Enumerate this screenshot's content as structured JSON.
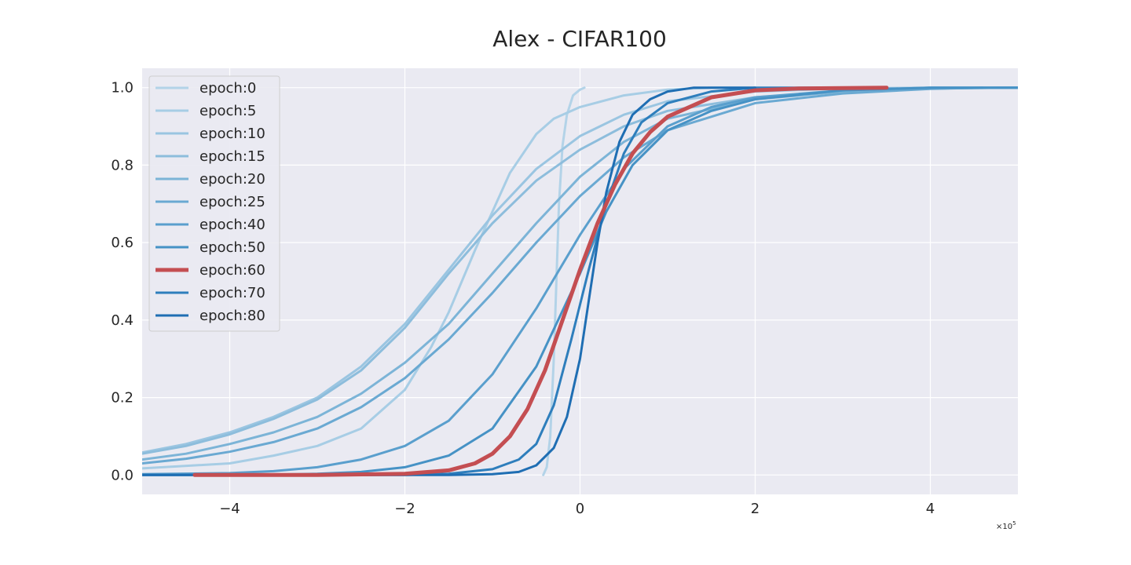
{
  "chart_data": {
    "type": "line",
    "title": "Alex - CIFAR100",
    "xlabel": "",
    "ylabel": "",
    "x_offset_label": "×10",
    "x_offset_exponent": "5",
    "xlim": [
      -5,
      5
    ],
    "ylim": [
      -0.05,
      1.05
    ],
    "xticks": [
      -4,
      -2,
      0,
      2,
      4
    ],
    "xtick_labels": [
      "−4",
      "−2",
      "0",
      "2",
      "4"
    ],
    "yticks": [
      0.0,
      0.2,
      0.4,
      0.6,
      0.8,
      1.0
    ],
    "ytick_labels": [
      "0.0",
      "0.2",
      "0.4",
      "0.6",
      "0.8",
      "1.0"
    ],
    "grid": true,
    "legend_position": "top-left",
    "highlight_color": "#c44e52",
    "series": [
      {
        "name": "epoch:0",
        "color": "#b3d3e8",
        "width": 3,
        "points": [
          [
            -0.42,
            0.0
          ],
          [
            -0.38,
            0.02
          ],
          [
            -0.34,
            0.1
          ],
          [
            -0.3,
            0.3
          ],
          [
            -0.27,
            0.5
          ],
          [
            -0.24,
            0.7
          ],
          [
            -0.2,
            0.85
          ],
          [
            -0.15,
            0.93
          ],
          [
            -0.08,
            0.98
          ],
          [
            0.0,
            0.995
          ],
          [
            0.05,
            1.0
          ]
        ]
      },
      {
        "name": "epoch:5",
        "color": "#a7cde5",
        "width": 3,
        "points": [
          [
            -5,
            0.017
          ],
          [
            -4,
            0.03
          ],
          [
            -3.5,
            0.05
          ],
          [
            -3,
            0.075
          ],
          [
            -2.5,
            0.12
          ],
          [
            -2,
            0.22
          ],
          [
            -1.7,
            0.33
          ],
          [
            -1.5,
            0.42
          ],
          [
            -1.2,
            0.58
          ],
          [
            -1,
            0.68
          ],
          [
            -0.8,
            0.78
          ],
          [
            -0.5,
            0.88
          ],
          [
            -0.3,
            0.92
          ],
          [
            0,
            0.95
          ],
          [
            0.5,
            0.98
          ],
          [
            1,
            0.995
          ],
          [
            1.5,
            1.0
          ],
          [
            2,
            1.0
          ]
        ]
      },
      {
        "name": "epoch:10",
        "color": "#9ac5e1",
        "width": 3,
        "points": [
          [
            -5,
            0.058
          ],
          [
            -4.5,
            0.08
          ],
          [
            -4,
            0.11
          ],
          [
            -3.5,
            0.15
          ],
          [
            -3,
            0.2
          ],
          [
            -2.5,
            0.28
          ],
          [
            -2,
            0.39
          ],
          [
            -1.5,
            0.53
          ],
          [
            -1,
            0.67
          ],
          [
            -0.5,
            0.79
          ],
          [
            0,
            0.875
          ],
          [
            0.5,
            0.93
          ],
          [
            1,
            0.965
          ],
          [
            2,
            0.99
          ],
          [
            3,
            0.998
          ],
          [
            4,
            1.0
          ],
          [
            5,
            1.0
          ]
        ]
      },
      {
        "name": "epoch:15",
        "color": "#8dbddc",
        "width": 3,
        "points": [
          [
            -5,
            0.055
          ],
          [
            -4.5,
            0.075
          ],
          [
            -4,
            0.105
          ],
          [
            -3.5,
            0.145
          ],
          [
            -3,
            0.195
          ],
          [
            -2.5,
            0.27
          ],
          [
            -2,
            0.38
          ],
          [
            -1.5,
            0.52
          ],
          [
            -1,
            0.65
          ],
          [
            -0.5,
            0.76
          ],
          [
            0,
            0.84
          ],
          [
            0.5,
            0.9
          ],
          [
            1,
            0.94
          ],
          [
            2,
            0.975
          ],
          [
            3,
            0.99
          ],
          [
            4,
            0.998
          ],
          [
            5,
            1.0
          ]
        ]
      },
      {
        "name": "epoch:20",
        "color": "#7cb4d7",
        "width": 3,
        "points": [
          [
            -5,
            0.04
          ],
          [
            -4.5,
            0.055
          ],
          [
            -4,
            0.08
          ],
          [
            -3.5,
            0.11
          ],
          [
            -3,
            0.15
          ],
          [
            -2.5,
            0.21
          ],
          [
            -2,
            0.29
          ],
          [
            -1.5,
            0.39
          ],
          [
            -1,
            0.52
          ],
          [
            -0.5,
            0.65
          ],
          [
            0,
            0.77
          ],
          [
            0.5,
            0.86
          ],
          [
            1,
            0.92
          ],
          [
            2,
            0.97
          ],
          [
            3,
            0.99
          ],
          [
            4,
            0.998
          ],
          [
            5,
            1.0
          ]
        ]
      },
      {
        "name": "epoch:25",
        "color": "#6aa9d2",
        "width": 3,
        "points": [
          [
            -5,
            0.03
          ],
          [
            -4.5,
            0.042
          ],
          [
            -4,
            0.06
          ],
          [
            -3.5,
            0.085
          ],
          [
            -3,
            0.12
          ],
          [
            -2.5,
            0.175
          ],
          [
            -2,
            0.25
          ],
          [
            -1.5,
            0.35
          ],
          [
            -1,
            0.47
          ],
          [
            -0.5,
            0.6
          ],
          [
            0,
            0.72
          ],
          [
            0.5,
            0.82
          ],
          [
            1,
            0.89
          ],
          [
            2,
            0.96
          ],
          [
            3,
            0.985
          ],
          [
            4,
            0.997
          ],
          [
            4.6,
            1.0
          ]
        ]
      },
      {
        "name": "epoch:40",
        "color": "#5a9fcd",
        "width": 3,
        "points": [
          [
            -5,
            0.002
          ],
          [
            -4,
            0.005
          ],
          [
            -3.5,
            0.01
          ],
          [
            -3,
            0.02
          ],
          [
            -2.5,
            0.04
          ],
          [
            -2,
            0.075
          ],
          [
            -1.5,
            0.14
          ],
          [
            -1,
            0.26
          ],
          [
            -0.5,
            0.43
          ],
          [
            0,
            0.62
          ],
          [
            0.5,
            0.79
          ],
          [
            1,
            0.9
          ],
          [
            1.5,
            0.95
          ],
          [
            2,
            0.975
          ],
          [
            3,
            0.993
          ],
          [
            4,
            1.0
          ],
          [
            5,
            1.0
          ]
        ]
      },
      {
        "name": "epoch:50",
        "color": "#4692c5",
        "width": 3,
        "points": [
          [
            -5,
            0.0
          ],
          [
            -3.5,
            0.001
          ],
          [
            -3,
            0.003
          ],
          [
            -2.5,
            0.008
          ],
          [
            -2,
            0.02
          ],
          [
            -1.5,
            0.05
          ],
          [
            -1,
            0.12
          ],
          [
            -0.5,
            0.28
          ],
          [
            0,
            0.52
          ],
          [
            0.3,
            0.68
          ],
          [
            0.6,
            0.8
          ],
          [
            1,
            0.89
          ],
          [
            1.5,
            0.94
          ],
          [
            2,
            0.97
          ],
          [
            3,
            0.993
          ],
          [
            4,
            1.0
          ],
          [
            5,
            1.0
          ]
        ]
      },
      {
        "name": "epoch:60",
        "color": "#c44e52",
        "width": 5,
        "highlight": true,
        "points": [
          [
            -4.4,
            0.0
          ],
          [
            -3,
            0.0
          ],
          [
            -2,
            0.003
          ],
          [
            -1.5,
            0.012
          ],
          [
            -1.2,
            0.03
          ],
          [
            -1,
            0.055
          ],
          [
            -0.8,
            0.1
          ],
          [
            -0.6,
            0.17
          ],
          [
            -0.4,
            0.27
          ],
          [
            -0.2,
            0.4
          ],
          [
            0,
            0.53
          ],
          [
            0.2,
            0.65
          ],
          [
            0.4,
            0.75
          ],
          [
            0.6,
            0.83
          ],
          [
            0.8,
            0.885
          ],
          [
            1,
            0.925
          ],
          [
            1.5,
            0.975
          ],
          [
            2,
            0.993
          ],
          [
            2.5,
            0.998
          ],
          [
            3.5,
            1.0
          ]
        ]
      },
      {
        "name": "epoch:70",
        "color": "#2e7ebc",
        "width": 3,
        "points": [
          [
            -5,
            0.0
          ],
          [
            -2,
            0.0
          ],
          [
            -1.5,
            0.003
          ],
          [
            -1,
            0.015
          ],
          [
            -0.7,
            0.04
          ],
          [
            -0.5,
            0.08
          ],
          [
            -0.3,
            0.18
          ],
          [
            -0.1,
            0.35
          ],
          [
            0.1,
            0.53
          ],
          [
            0.3,
            0.7
          ],
          [
            0.5,
            0.83
          ],
          [
            0.7,
            0.91
          ],
          [
            1,
            0.96
          ],
          [
            1.5,
            0.99
          ],
          [
            2,
            1.0
          ],
          [
            3,
            1.0
          ]
        ]
      },
      {
        "name": "epoch:80",
        "color": "#1f6eb3",
        "width": 3,
        "points": [
          [
            -5,
            0.0
          ],
          [
            -1.5,
            0.0
          ],
          [
            -1,
            0.002
          ],
          [
            -0.7,
            0.008
          ],
          [
            -0.5,
            0.025
          ],
          [
            -0.3,
            0.07
          ],
          [
            -0.15,
            0.15
          ],
          [
            0,
            0.3
          ],
          [
            0.1,
            0.45
          ],
          [
            0.2,
            0.6
          ],
          [
            0.3,
            0.73
          ],
          [
            0.45,
            0.86
          ],
          [
            0.6,
            0.93
          ],
          [
            0.8,
            0.97
          ],
          [
            1,
            0.99
          ],
          [
            1.3,
            1.0
          ],
          [
            2,
            1.0
          ]
        ]
      }
    ]
  }
}
